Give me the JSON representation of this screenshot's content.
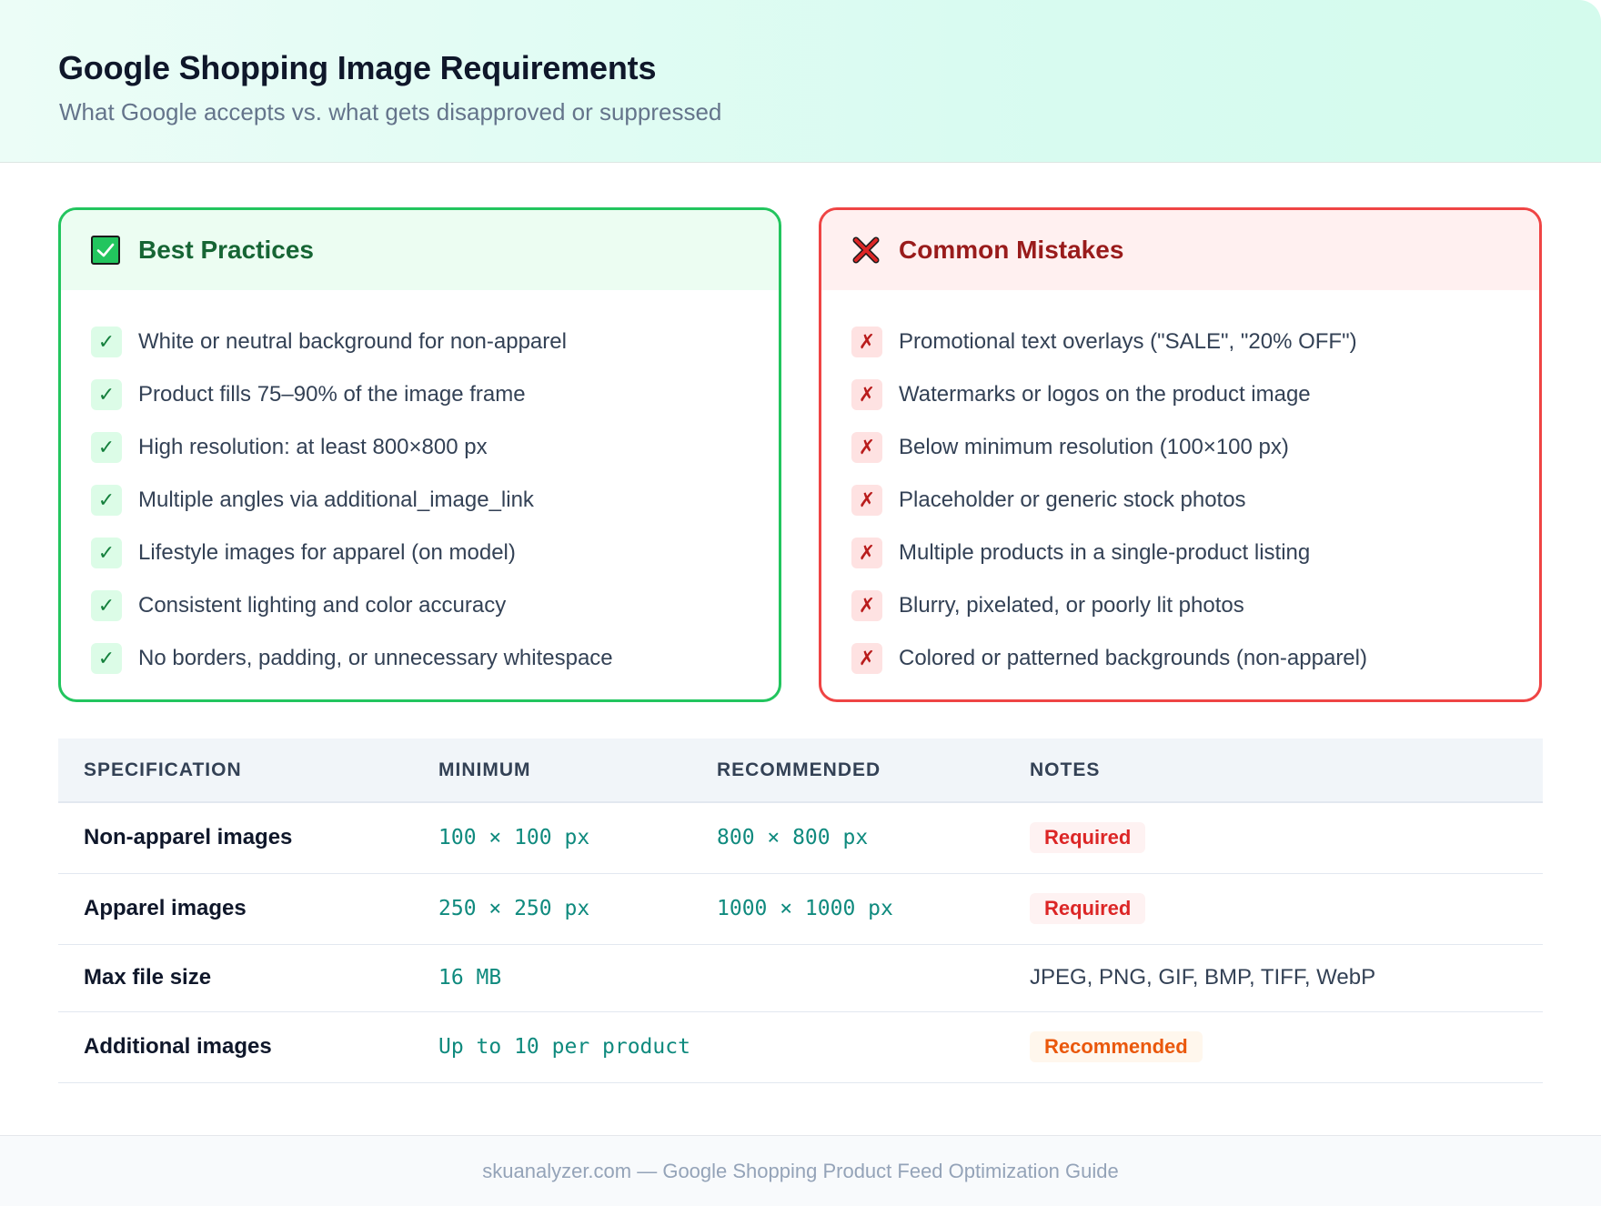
{
  "header": {
    "title": "Google Shopping Image Requirements",
    "subtitle": "What Google accepts vs. what gets disapproved or suppressed"
  },
  "best_practices": {
    "title": "Best Practices",
    "icon": "check-box-icon",
    "accent": "#22c55e",
    "items": [
      "White or neutral background for non-apparel",
      "Product fills 75–90% of the image frame",
      "High resolution: at least 800×800 px",
      "Multiple angles via additional_image_link",
      "Lifestyle images for apparel (on model)",
      "Consistent lighting and color accuracy",
      "No borders, padding, or unnecessary whitespace"
    ]
  },
  "common_mistakes": {
    "title": "Common Mistakes",
    "icon": "cross-mark-icon",
    "accent": "#ef4444",
    "items": [
      "Promotional text overlays (\"SALE\", \"20% OFF\")",
      "Watermarks or logos on the product image",
      "Below minimum resolution (100×100 px)",
      "Placeholder or generic stock photos",
      "Multiple products in a single-product listing",
      "Blurry, pixelated, or poorly lit photos",
      "Colored or patterned backgrounds (non-apparel)"
    ]
  },
  "table": {
    "headers": [
      "SPECIFICATION",
      "MINIMUM",
      "RECOMMENDED",
      "NOTES"
    ],
    "rows": [
      {
        "spec": "Non-apparel images",
        "minimum": "100 × 100 px",
        "recommended": "800 × 800 px",
        "note": "Required",
        "note_type": "badge-required"
      },
      {
        "spec": "Apparel images",
        "minimum": "250 × 250 px",
        "recommended": "1000 × 1000 px",
        "note": "Required",
        "note_type": "badge-required"
      },
      {
        "spec": "Max file size",
        "minimum": "16 MB",
        "recommended": "",
        "note": "JPEG, PNG, GIF, BMP, TIFF, WebP",
        "note_type": "text"
      },
      {
        "spec": "Additional images",
        "minimum": "Up to 10 per product",
        "recommended": "",
        "note": "Recommended",
        "note_type": "badge-recommended"
      }
    ]
  },
  "footer": {
    "text": "skuanalyzer.com — Google Shopping Product Feed Optimization Guide"
  }
}
